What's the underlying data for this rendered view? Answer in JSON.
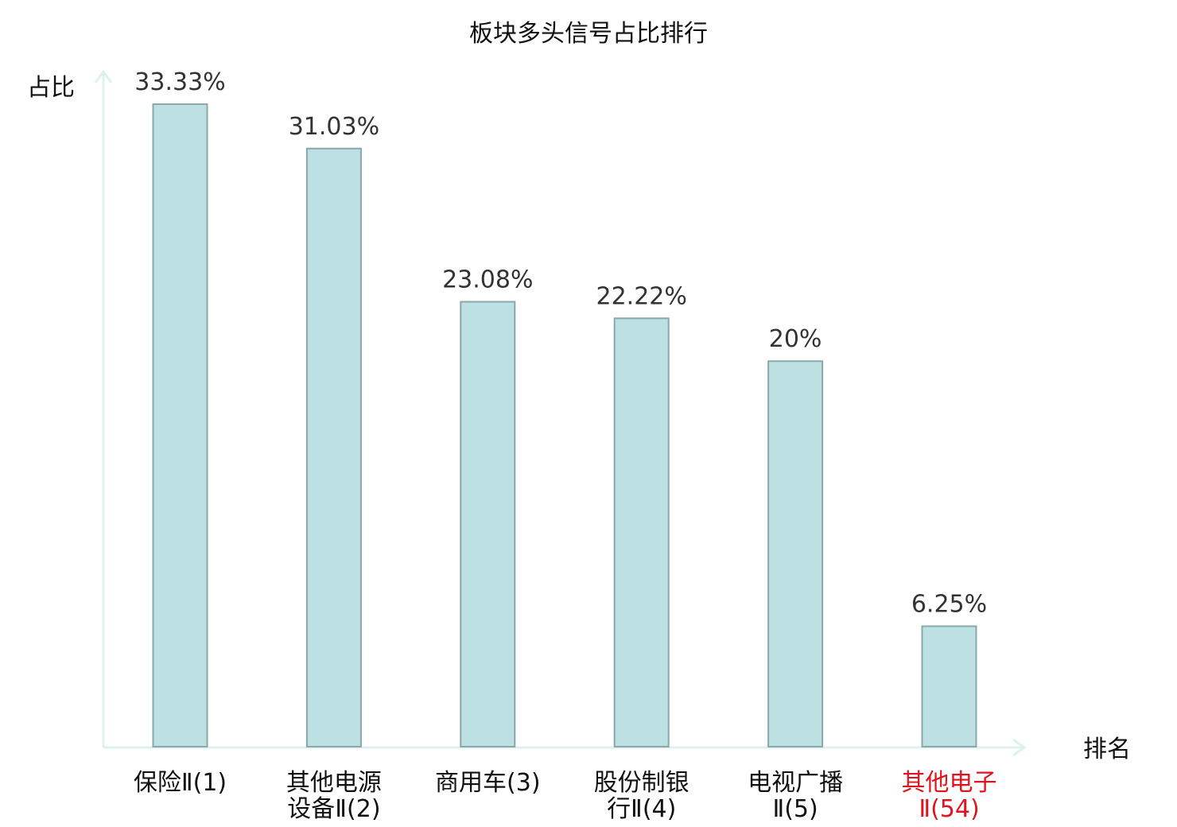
{
  "chart_data": {
    "type": "bar",
    "title": "板块多头信号占比排行",
    "ylabel": "占比",
    "xlabel": "排名",
    "categories": [
      [
        "保险Ⅱ(1)"
      ],
      [
        "其他电源",
        "设备Ⅱ(2)"
      ],
      [
        "商用车(3)"
      ],
      [
        "股份制银",
        "行Ⅱ(4)"
      ],
      [
        "电视广播",
        "Ⅱ(5)"
      ],
      [
        "其他电子",
        "Ⅱ(54)"
      ]
    ],
    "values": [
      33.33,
      31.03,
      23.08,
      22.22,
      20,
      6.25
    ],
    "value_labels": [
      "33.33%",
      "31.03%",
      "23.08%",
      "22.22%",
      "20%",
      "6.25%"
    ],
    "highlight_index": 5,
    "ylim": [
      0,
      33.33
    ],
    "grid": false,
    "colors": {
      "bar_fill": "#bde0e3",
      "bar_stroke": "#8aa7aa",
      "axis": "#dff1ee",
      "highlight_text": "#e0141c",
      "text": "#111111",
      "value_text": "#333333"
    }
  }
}
